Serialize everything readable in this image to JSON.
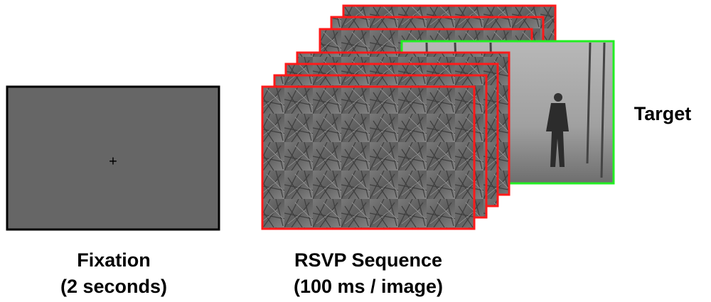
{
  "fixation": {
    "cross": "+",
    "label": "Fixation",
    "duration": "(2 seconds)"
  },
  "rsvp": {
    "label": "RSVP Sequence",
    "rate": "(100 ms / image)"
  },
  "target": {
    "label": "Target"
  }
}
